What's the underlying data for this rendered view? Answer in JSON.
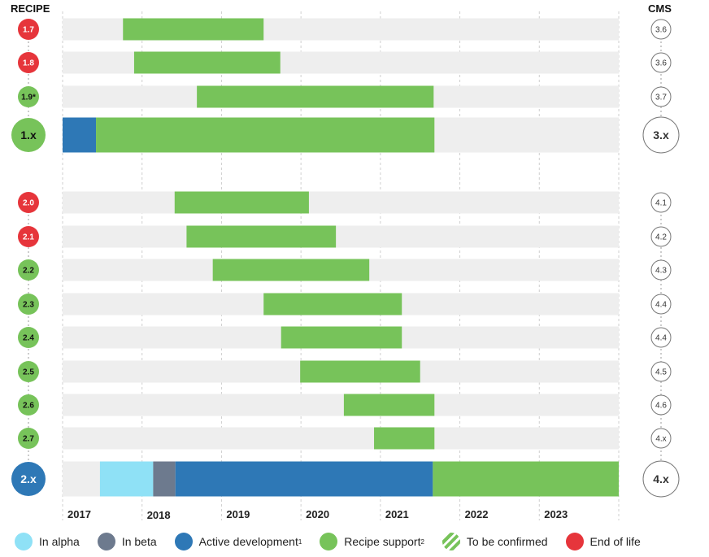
{
  "chart_data": {
    "type": "gantt",
    "left_header": "RECIPE",
    "right_header": "CMS",
    "xlim": [
      2017,
      2024
    ],
    "x_ticks": [
      "2017",
      "2018",
      "2019",
      "2020",
      "2021",
      "2022",
      "2023"
    ],
    "grid": true,
    "legend_position": "bottom",
    "colors": {
      "alpha": "#8fe1f6",
      "beta": "#6d7a8e",
      "active": "#2e78b6",
      "support": "#77c35a",
      "eol": "#e6353b",
      "track": "#eeeeee"
    },
    "groups": [
      {
        "rows": [
          {
            "recipe": "1.7",
            "status": "eol",
            "cms": "3.6",
            "segments": [
              {
                "phase": "support",
                "start": 2017.76,
                "end": 2019.53
              }
            ]
          },
          {
            "recipe": "1.8",
            "status": "eol",
            "cms": "3.6",
            "segments": [
              {
                "phase": "support",
                "start": 2017.9,
                "end": 2019.74
              }
            ]
          },
          {
            "recipe": "1.9*",
            "status": "support",
            "cms": "3.7",
            "segments": [
              {
                "phase": "support",
                "start": 2018.69,
                "end": 2021.67
              }
            ]
          },
          {
            "recipe": "1.x",
            "status": "support",
            "major": true,
            "cms": "3.x",
            "segments": [
              {
                "phase": "active",
                "start": 2017.0,
                "end": 2017.42
              },
              {
                "phase": "support",
                "start": 2017.42,
                "end": 2021.68
              }
            ]
          }
        ]
      },
      {
        "rows": [
          {
            "recipe": "2.0",
            "status": "eol",
            "cms": "4.1",
            "segments": [
              {
                "phase": "support",
                "start": 2018.41,
                "end": 2020.1
              }
            ]
          },
          {
            "recipe": "2.1",
            "status": "eol",
            "cms": "4.2",
            "segments": [
              {
                "phase": "support",
                "start": 2018.56,
                "end": 2020.44
              }
            ]
          },
          {
            "recipe": "2.2",
            "status": "support",
            "cms": "4.3",
            "segments": [
              {
                "phase": "support",
                "start": 2018.89,
                "end": 2020.86
              }
            ]
          },
          {
            "recipe": "2.3",
            "status": "support",
            "cms": "4.4",
            "segments": [
              {
                "phase": "support",
                "start": 2019.53,
                "end": 2021.27
              }
            ]
          },
          {
            "recipe": "2.4",
            "status": "support",
            "cms": "4.4",
            "segments": [
              {
                "phase": "support",
                "start": 2019.75,
                "end": 2021.27
              }
            ]
          },
          {
            "recipe": "2.5",
            "status": "support",
            "cms": "4.5",
            "segments": [
              {
                "phase": "support",
                "start": 2019.99,
                "end": 2021.5
              }
            ]
          },
          {
            "recipe": "2.6",
            "status": "support",
            "cms": "4.6",
            "segments": [
              {
                "phase": "support",
                "start": 2020.54,
                "end": 2021.68
              }
            ]
          },
          {
            "recipe": "2.7",
            "status": "support",
            "cms": "4.x",
            "segments": [
              {
                "phase": "support",
                "start": 2020.92,
                "end": 2021.68
              }
            ]
          },
          {
            "recipe": "2.x",
            "status": "active",
            "major": true,
            "cms": "4.x",
            "segments": [
              {
                "phase": "alpha",
                "start": 2017.47,
                "end": 2018.14
              },
              {
                "phase": "beta",
                "start": 2018.14,
                "end": 2018.42
              },
              {
                "phase": "active",
                "start": 2018.42,
                "end": 2021.66
              },
              {
                "phase": "support",
                "start": 2021.66,
                "end": 2024.0
              }
            ]
          }
        ]
      }
    ]
  },
  "legend": [
    {
      "key": "alpha",
      "label": "In alpha",
      "sup": ""
    },
    {
      "key": "beta",
      "label": "In beta",
      "sup": ""
    },
    {
      "key": "active",
      "label": "Active development",
      "sup": "1"
    },
    {
      "key": "support",
      "label": "Recipe support",
      "sup": "2"
    },
    {
      "key": "tbc",
      "label": "To be confirmed",
      "sup": ""
    },
    {
      "key": "eol",
      "label": "End of life",
      "sup": ""
    }
  ]
}
